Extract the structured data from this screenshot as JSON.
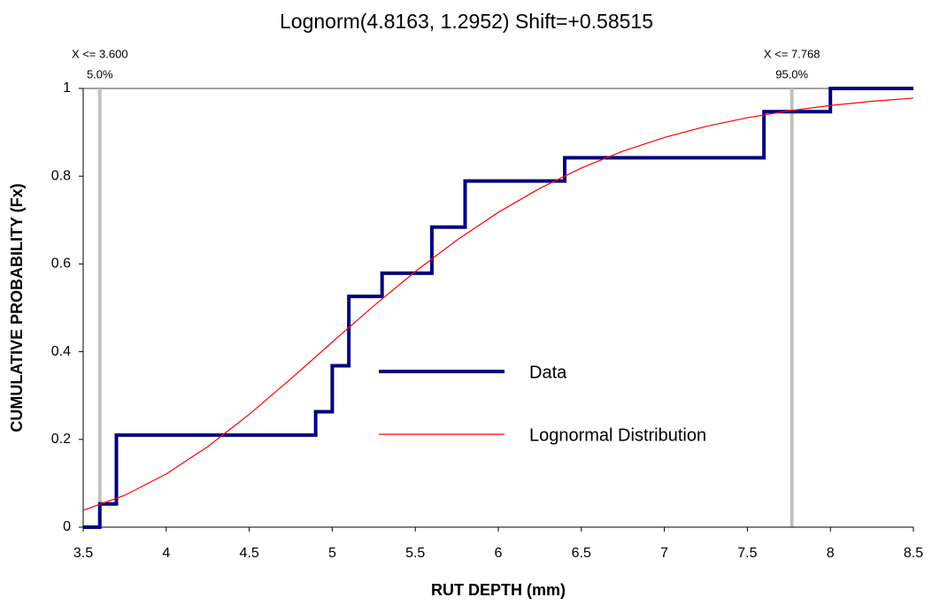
{
  "chart_data": {
    "type": "line",
    "title": "Lognorm(4.8163, 1.2952) Shift=+0.58515",
    "x_label": "RUT DEPTH (mm)",
    "y_label": "CUMULATIVE PROBABILITY (Fx)",
    "xlim": [
      3.5,
      8.5
    ],
    "xticks": [
      3.5,
      4,
      4.5,
      5,
      5.5,
      6,
      6.5,
      7,
      7.5,
      8,
      8.5
    ],
    "ylim": [
      0,
      1
    ],
    "yticks": [
      0,
      0.2,
      0.4,
      0.6,
      0.8,
      1
    ],
    "legend": "center",
    "series": [
      {
        "name": "Data",
        "color": "#000080",
        "x": [
          3.5,
          3.6,
          3.6,
          3.7,
          3.7,
          4.9,
          4.9,
          5.0,
          5.0,
          5.1,
          5.1,
          5.3,
          5.3,
          5.6,
          5.6,
          5.8,
          5.8,
          6.4,
          6.4,
          7.6,
          7.6,
          8.0,
          8.0,
          8.5
        ],
        "values": [
          0,
          0,
          0.053,
          0.053,
          0.21,
          0.21,
          0.263,
          0.263,
          0.368,
          0.368,
          0.526,
          0.526,
          0.579,
          0.579,
          0.684,
          0.684,
          0.789,
          0.789,
          0.842,
          0.842,
          0.947,
          0.947,
          1,
          1
        ]
      },
      {
        "name": "Lognormal Distribution",
        "color": "#ff0000",
        "x": [
          3.5,
          3.75,
          4,
          4.25,
          4.5,
          4.75,
          5,
          5.25,
          5.5,
          5.75,
          6,
          6.25,
          6.5,
          6.75,
          7,
          7.25,
          7.5,
          7.75,
          8,
          8.25,
          8.5
        ],
        "values": [
          0.0385,
          0.0726,
          0.1212,
          0.1835,
          0.2572,
          0.338,
          0.4219,
          0.5045,
          0.5827,
          0.6542,
          0.7176,
          0.7723,
          0.8186,
          0.8569,
          0.8882,
          0.9134,
          0.9333,
          0.949,
          0.9612,
          0.9707,
          0.9779
        ]
      }
    ],
    "markers": [
      {
        "x": 3.6,
        "x_label": "X <= 3.600",
        "probability": 5,
        "probability_label": "5.0%"
      },
      {
        "x": 7.768,
        "x_label": "X <= 7.768",
        "probability": 95,
        "probability_label": "95.0%"
      }
    ]
  }
}
